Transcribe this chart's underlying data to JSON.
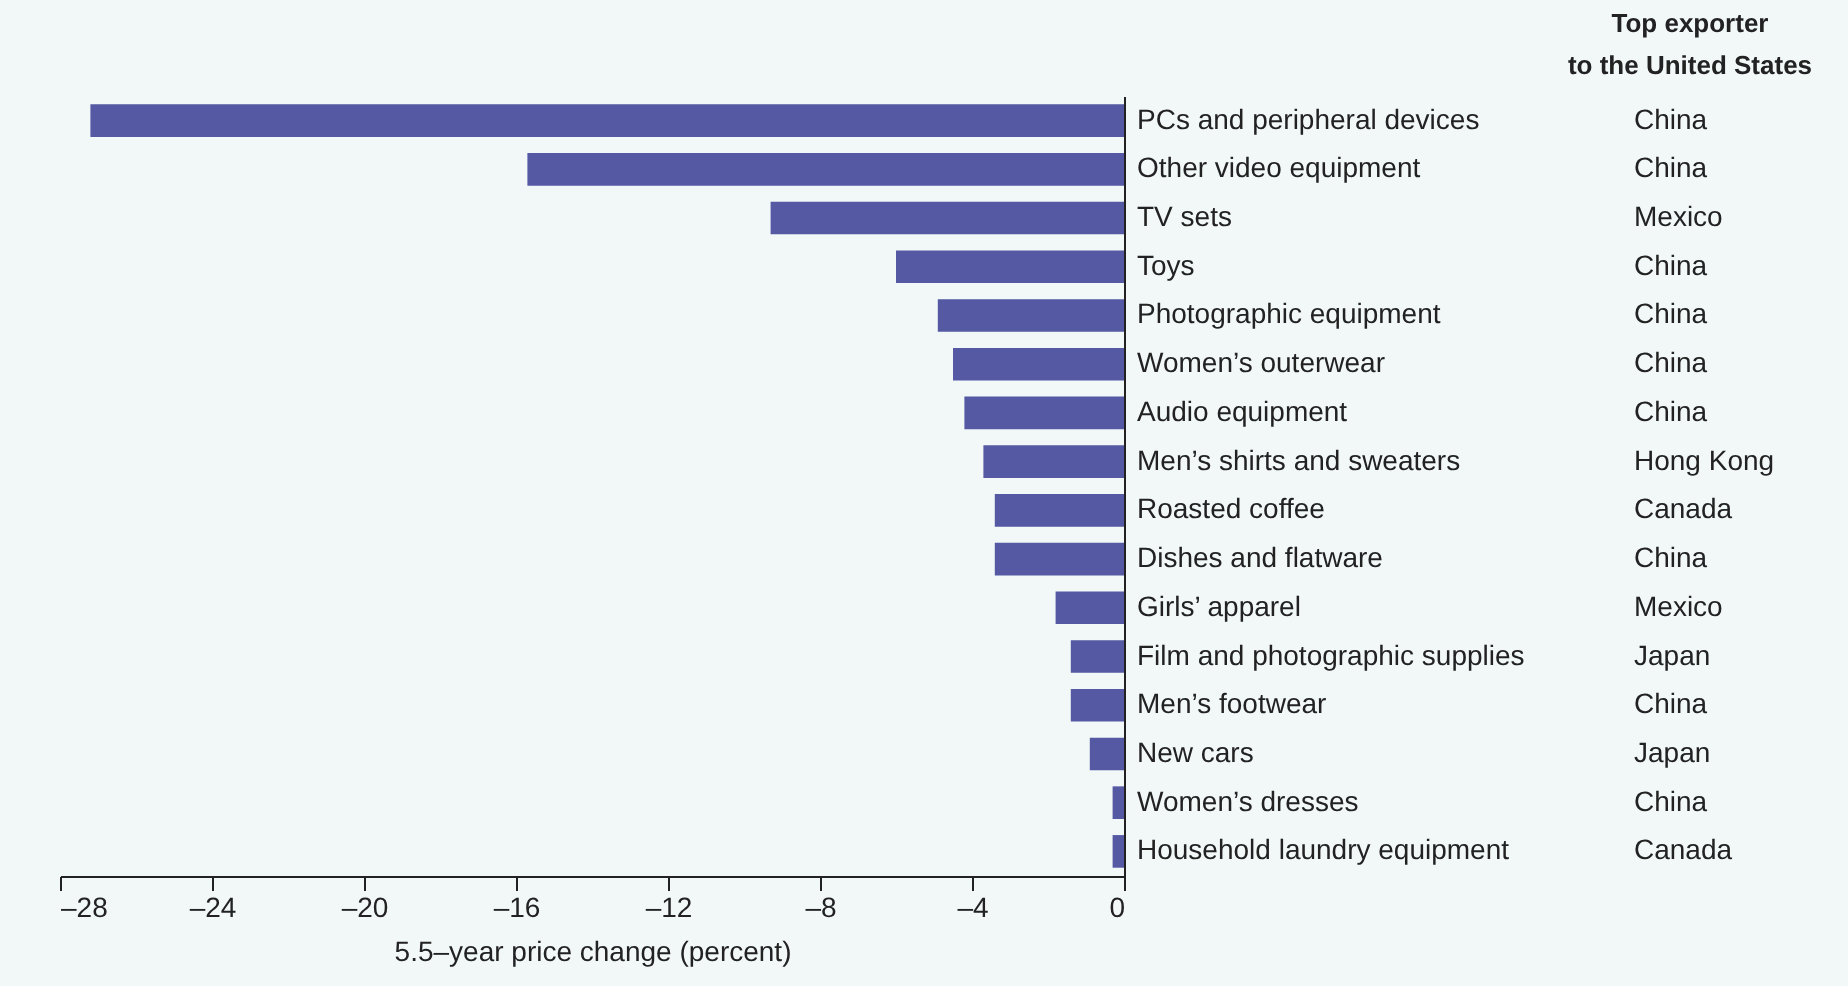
{
  "chart_data": {
    "type": "bar",
    "orientation": "horizontal",
    "xlabel": "5.5–year price change (percent)",
    "y2label": "Top exporter\nto the United States",
    "categories": [
      "PCs and peripheral devices",
      "Other video equipment",
      "TV sets",
      "Toys",
      "Photographic equipment",
      "Women’s outerwear",
      "Audio equipment",
      "Men’s shirts and sweaters",
      "Roasted coffee",
      "Dishes and flatware",
      "Girls’ apparel",
      "Film and photographic supplies",
      "Men’s footwear",
      "New cars",
      "Women’s dresses",
      "Household laundry equipment"
    ],
    "y2_categories": [
      "China",
      "China",
      "Mexico",
      "China",
      "China",
      "China",
      "China",
      "Hong Kong",
      "Canada",
      "China",
      "Mexico",
      "Japan",
      "China",
      "Japan",
      "China",
      "Canada"
    ],
    "values": [
      -27.2,
      -15.7,
      -9.3,
      -6.0,
      -4.9,
      -4.5,
      -4.2,
      -3.7,
      -3.4,
      -3.4,
      -1.8,
      -1.4,
      -1.4,
      -0.9,
      -0.3,
      -0.3
    ],
    "color": "#5558a3",
    "xlim": [
      -28,
      0
    ],
    "xticks": [
      {
        "value": -28,
        "label": "–28"
      },
      {
        "value": -24,
        "label": "–24"
      },
      {
        "value": -20,
        "label": "–20"
      },
      {
        "value": -16,
        "label": "–16"
      },
      {
        "value": -12,
        "label": "–12"
      },
      {
        "value": -8,
        "label": "–8"
      },
      {
        "value": -4,
        "label": "–4"
      },
      0
    ],
    "grid": false
  }
}
